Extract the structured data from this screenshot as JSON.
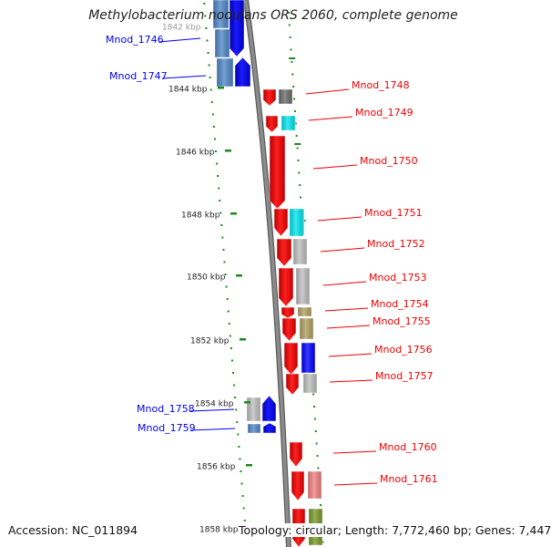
{
  "title": "Methylobacterium nodulans ORS 2060, complete genome",
  "footer": {
    "accession": "Accession: NC_011894",
    "summary": "Topology: circular; Length: 7,772,460 bp; Genes: 7,447"
  },
  "scale_labels": [
    "1842 kbp",
    "1844 kbp",
    "1846 kbp",
    "1848 kbp",
    "1850 kbp",
    "1852 kbp",
    "1854 kbp",
    "1856 kbp",
    "1858 kbp"
  ],
  "genes": [
    {
      "id": "Mnod_1746",
      "strand": "forward",
      "color": "#0000ee"
    },
    {
      "id": "Mnod_1747",
      "strand": "forward",
      "color": "#0000ee"
    },
    {
      "id": "Mnod_1748",
      "strand": "reverse",
      "color": "#ee0000"
    },
    {
      "id": "Mnod_1749",
      "strand": "reverse",
      "color": "#ee0000"
    },
    {
      "id": "Mnod_1750",
      "strand": "reverse",
      "color": "#ee0000"
    },
    {
      "id": "Mnod_1751",
      "strand": "reverse",
      "color": "#ee0000"
    },
    {
      "id": "Mnod_1752",
      "strand": "reverse",
      "color": "#ee0000"
    },
    {
      "id": "Mnod_1753",
      "strand": "reverse",
      "color": "#ee0000"
    },
    {
      "id": "Mnod_1754",
      "strand": "reverse",
      "color": "#ee0000"
    },
    {
      "id": "Mnod_1755",
      "strand": "reverse",
      "color": "#ee0000"
    },
    {
      "id": "Mnod_1756",
      "strand": "reverse",
      "color": "#ee0000"
    },
    {
      "id": "Mnod_1757",
      "strand": "reverse",
      "color": "#ee0000"
    },
    {
      "id": "Mnod_1758",
      "strand": "forward",
      "color": "#0000ee"
    },
    {
      "id": "Mnod_1759",
      "strand": "forward",
      "color": "#0000ee"
    },
    {
      "id": "Mnod_1760",
      "strand": "reverse",
      "color": "#ee0000"
    },
    {
      "id": "Mnod_1761",
      "strand": "reverse",
      "color": "#ee0000"
    }
  ],
  "cog_colors": {
    "light_blue": "#4f86c6",
    "dark_gray": "#6b6b6b",
    "cyan": "#00e5ee",
    "light_gray": "#bdbdbd",
    "olive": "#b0a060",
    "blue": "#0000ff",
    "pink": "#f08080",
    "green": "#7a9a2a"
  },
  "backbone_color": "#8c8c8c",
  "tick_color": "#1a8a1a"
}
